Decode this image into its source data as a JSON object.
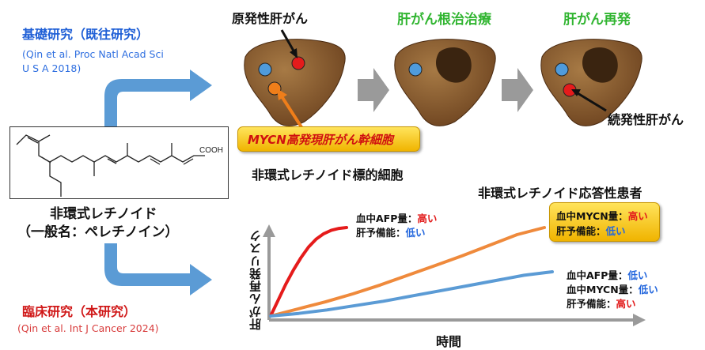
{
  "basic_research": {
    "title": "基礎研究（既往研究）",
    "ref_line1": "(Qin et al. Proc Natl Acad Sci",
    "ref_line2": "U S A 2018)"
  },
  "clinical_research": {
    "title": "臨床研究（本研究）",
    "ref": "(Qin et al. Int J Cancer 2024)"
  },
  "drug": {
    "name_line1": "非環式レチノイド",
    "name_line2": "（一般名：ペレチノイン）",
    "cooh": "COOH"
  },
  "liver_panels": {
    "primary": "原発性肝がん",
    "curative": "肝がん根治治療",
    "recurrence": "肝がん再発",
    "secondary": "続発性肝がん"
  },
  "mycn_box": {
    "label": "MYCN高発現肝がん幹細胞",
    "caption": "非環式レチノイド標的細胞"
  },
  "chart_labels": {
    "responder_title": "非環式レチノイド応答性患者",
    "high_risk_line1_prefix": "血中AFP量：",
    "high_risk_line1_value": "高い",
    "high_risk_line2_prefix": "肝予備能：",
    "high_risk_line2_value": "低い",
    "mid_line1_prefix": "血中MYCN量：",
    "mid_line1_value": "高い",
    "mid_line2_prefix": "肝予備能：",
    "mid_line2_value": "低い",
    "low_line1_prefix": "血中AFP量：",
    "low_line1_value": "低い",
    "low_line2_prefix": "血中MYCN量：",
    "low_line2_value": "低い",
    "low_line3_prefix": "肝予備能：",
    "low_line3_value": "高い"
  },
  "chart_data": {
    "type": "line",
    "xlabel": "時間",
    "ylabel": "肝がん再発リスク",
    "series": [
      {
        "color": "#E51B1B",
        "x": [
          0,
          0.1,
          0.2,
          0.3,
          0.4,
          0.5,
          0.6,
          0.7,
          0.8,
          0.9,
          1.0
        ],
        "y": [
          0,
          0.18,
          0.36,
          0.52,
          0.66,
          0.78,
          0.87,
          0.93,
          0.97,
          0.99,
          1.0
        ]
      },
      {
        "color": "#EF8A3C",
        "x": [
          0,
          0.1,
          0.2,
          0.3,
          0.4,
          0.5,
          0.6,
          0.7,
          0.8,
          0.9,
          1.0
        ],
        "y": [
          0,
          0.08,
          0.16,
          0.25,
          0.35,
          0.46,
          0.57,
          0.68,
          0.8,
          0.92,
          1.0
        ]
      },
      {
        "color": "#5B9BD5",
        "x": [
          0,
          0.1,
          0.2,
          0.3,
          0.4,
          0.5,
          0.6,
          0.7,
          0.8,
          0.9,
          1.0
        ],
        "y": [
          0,
          0.03,
          0.07,
          0.12,
          0.17,
          0.23,
          0.29,
          0.35,
          0.41,
          0.47,
          0.51
        ]
      }
    ]
  },
  "colors": {
    "arrow_blue": "#5B9BD5",
    "arrow_grey": "#9A9A9A",
    "liver_brown": "#8B5A2B",
    "title_green": "#31B531",
    "mycn_gold": "#F5C518",
    "dot_red": "#E51B1B",
    "dot_orange": "#EF7E1A",
    "dot_blue": "#4F9BDB"
  }
}
